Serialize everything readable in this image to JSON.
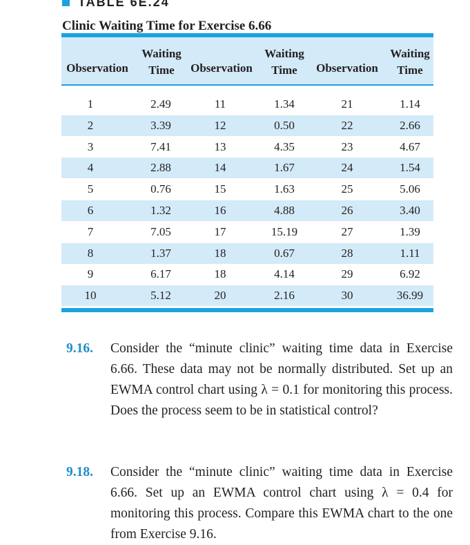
{
  "table": {
    "label": "TABLE 6E.24",
    "title": "Clinic Waiting Time for Exercise 6.66",
    "headers": {
      "observation": "Observation",
      "waiting_line1": "Waiting",
      "waiting_line2": "Time"
    },
    "rows": [
      [
        "1",
        "2.49",
        "11",
        "1.34",
        "21",
        "1.14"
      ],
      [
        "2",
        "3.39",
        "12",
        "0.50",
        "22",
        "2.66"
      ],
      [
        "3",
        "7.41",
        "13",
        "4.35",
        "23",
        "4.67"
      ],
      [
        "4",
        "2.88",
        "14",
        "1.67",
        "24",
        "1.54"
      ],
      [
        "5",
        "0.76",
        "15",
        "1.63",
        "25",
        "5.06"
      ],
      [
        "6",
        "1.32",
        "16",
        "4.88",
        "26",
        "3.40"
      ],
      [
        "7",
        "7.05",
        "17",
        "15.19",
        "27",
        "1.39"
      ],
      [
        "8",
        "1.37",
        "18",
        "0.67",
        "28",
        "1.11"
      ],
      [
        "9",
        "6.17",
        "18",
        "4.14",
        "29",
        "6.92"
      ],
      [
        "10",
        "5.12",
        "20",
        "2.16",
        "30",
        "36.99"
      ]
    ]
  },
  "exercises": [
    {
      "number": "9.16.",
      "text": "Consider the “minute clinic” waiting time data in Exercise 6.66. These data may not be normally distributed. Set up an EWMA control chart using λ = 0.1 for monitoring this process. Does the process seem to be in statistical control?"
    },
    {
      "number": "9.18.",
      "text": "Consider the “minute clinic” waiting time data in Exercise 6.66. Set up an EWMA control chart using λ = 0.4 for monitoring this process. Compare this EWMA chart to the one from Exercise 9.16."
    }
  ],
  "colors": {
    "accent_blue": "#1aa3dc",
    "row_shade": "#d3eaf8",
    "exercise_number": "#1f8ec8"
  }
}
